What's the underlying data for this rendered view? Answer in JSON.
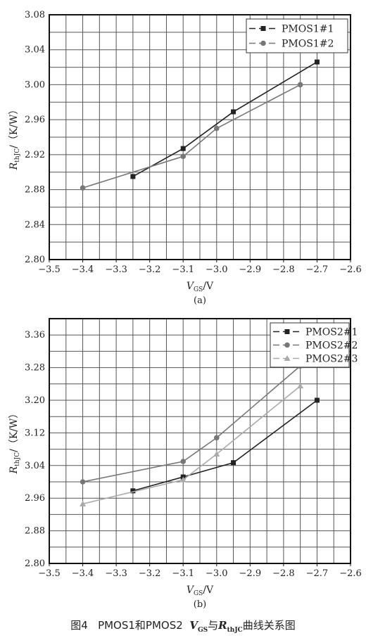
{
  "caption": {
    "number": "图4",
    "text_a": "PMOS1和PMOS2",
    "vgs_main": "V",
    "vgs_sub": "GS",
    "connector": "与",
    "r_main": "R",
    "r_sub": "thJC",
    "suffix": "曲线关系图"
  },
  "chart_data": [
    {
      "type": "line",
      "panel_label": "(a)",
      "xlabel": "V_GS/V",
      "ylabel": "R_thJC/(K/W)",
      "xlim": [
        -3.5,
        -2.6
      ],
      "ylim": [
        2.8,
        3.08
      ],
      "xticks": [
        -3.5,
        -3.4,
        -3.3,
        -3.2,
        -3.1,
        -3.0,
        -2.9,
        -2.8,
        -2.7,
        -2.6
      ],
      "xtick_labels": [
        "−3.5",
        "−3.4",
        "−3.3",
        "−3.2",
        "−3.1",
        "−3.0",
        "−2.9",
        "−2.8",
        "−2.7",
        "−2.6"
      ],
      "yticks": [
        2.8,
        2.84,
        2.88,
        2.92,
        2.96,
        3.0,
        3.04,
        3.08
      ],
      "ytick_labels": [
        "2.80",
        "2.84",
        "2.88",
        "2.92",
        "2.96",
        "3.00",
        "3.04",
        "3.08"
      ],
      "grid": true,
      "legend_position": "top-right",
      "series": [
        {
          "name": "PMOS1#1",
          "marker": "square",
          "color": "#222222",
          "x": [
            -3.25,
            -3.1,
            -2.95,
            -2.7
          ],
          "y": [
            2.895,
            2.927,
            2.969,
            3.026
          ]
        },
        {
          "name": "PMOS1#2",
          "marker": "circle",
          "color": "#777777",
          "x": [
            -3.4,
            -3.1,
            -3.0,
            -2.75
          ],
          "y": [
            2.882,
            2.918,
            2.95,
            3.0
          ]
        }
      ]
    },
    {
      "type": "line",
      "panel_label": "(b)",
      "xlabel": "V_GS/V",
      "ylabel": "R_thJC/(K/W)",
      "xlim": [
        -3.5,
        -2.6
      ],
      "ylim": [
        2.8,
        3.4
      ],
      "xticks": [
        -3.5,
        -3.4,
        -3.3,
        -3.2,
        -3.1,
        -3.0,
        -2.9,
        -2.8,
        -2.7,
        -2.6
      ],
      "xtick_labels": [
        "−3.5",
        "−3.4",
        "−3.3",
        "−3.2",
        "−3.1",
        "−3.0",
        "−2.9",
        "−2.8",
        "−2.7",
        "−2.6"
      ],
      "yticks": [
        2.8,
        2.88,
        2.96,
        3.04,
        3.12,
        3.2,
        3.28,
        3.36
      ],
      "ytick_labels": [
        "2.80",
        "2.88",
        "2.96",
        "3.04",
        "3.12",
        "3.20",
        "3.28",
        "3.36"
      ],
      "grid": true,
      "legend_position": "top-right",
      "series": [
        {
          "name": "PMOS2#1",
          "marker": "square",
          "color": "#222222",
          "x": [
            -3.25,
            -3.1,
            -2.95,
            -2.7
          ],
          "y": [
            2.978,
            3.012,
            3.047,
            3.2
          ]
        },
        {
          "name": "PMOS2#2",
          "marker": "circle",
          "color": "#777777",
          "x": [
            -3.4,
            -3.1,
            -3.0,
            -2.75
          ],
          "y": [
            3.0,
            3.05,
            3.108,
            3.284
          ]
        },
        {
          "name": "PMOS2#3",
          "marker": "triangle",
          "color": "#aaaaaa",
          "x": [
            -3.4,
            -3.1,
            -3.0,
            -2.75
          ],
          "y": [
            2.946,
            3.005,
            3.068,
            3.235
          ]
        }
      ]
    }
  ]
}
